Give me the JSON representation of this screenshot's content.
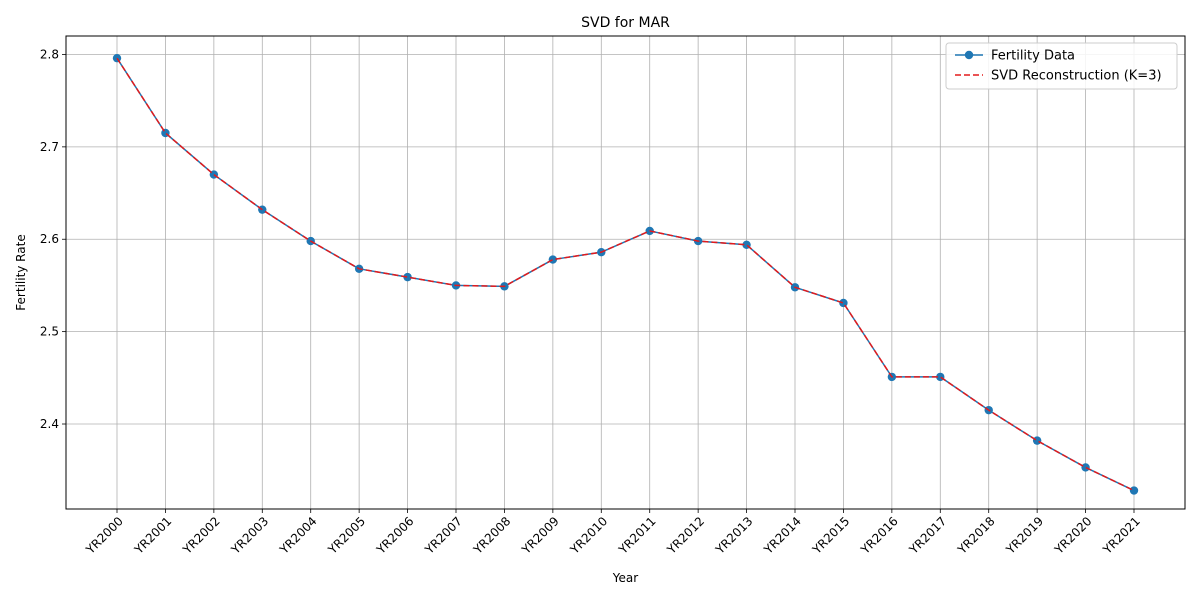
{
  "chart_data": {
    "type": "line",
    "title": "SVD for MAR",
    "xlabel": "Year",
    "ylabel": "Fertility Rate",
    "categories": [
      "YR2000",
      "YR2001",
      "YR2002",
      "YR2003",
      "YR2004",
      "YR2005",
      "YR2006",
      "YR2007",
      "YR2008",
      "YR2009",
      "YR2010",
      "YR2011",
      "YR2012",
      "YR2013",
      "YR2014",
      "YR2015",
      "YR2016",
      "YR2017",
      "YR2018",
      "YR2019",
      "YR2020",
      "YR2021"
    ],
    "ylim": [
      2.308,
      2.82
    ],
    "yticks": [
      2.4,
      2.5,
      2.6,
      2.7,
      2.8
    ],
    "ytick_labels": [
      "2.4",
      "2.5",
      "2.6",
      "2.7",
      "2.8"
    ],
    "grid": true,
    "legend_position": "top-right",
    "series": [
      {
        "name": "Fertility Data",
        "color": "#1f77b4",
        "style": "solid-with-circle-markers",
        "values": [
          2.796,
          2.715,
          2.67,
          2.632,
          2.598,
          2.568,
          2.559,
          2.55,
          2.549,
          2.578,
          2.586,
          2.609,
          2.598,
          2.594,
          2.548,
          2.531,
          2.451,
          2.451,
          2.415,
          2.382,
          2.353,
          2.328
        ]
      },
      {
        "name": "SVD Reconstruction (K=3)",
        "color": "#e31a1c",
        "style": "dashed",
        "values": [
          2.796,
          2.715,
          2.67,
          2.632,
          2.598,
          2.568,
          2.559,
          2.55,
          2.549,
          2.578,
          2.586,
          2.609,
          2.598,
          2.594,
          2.548,
          2.531,
          2.451,
          2.451,
          2.415,
          2.382,
          2.353,
          2.328
        ]
      }
    ]
  }
}
